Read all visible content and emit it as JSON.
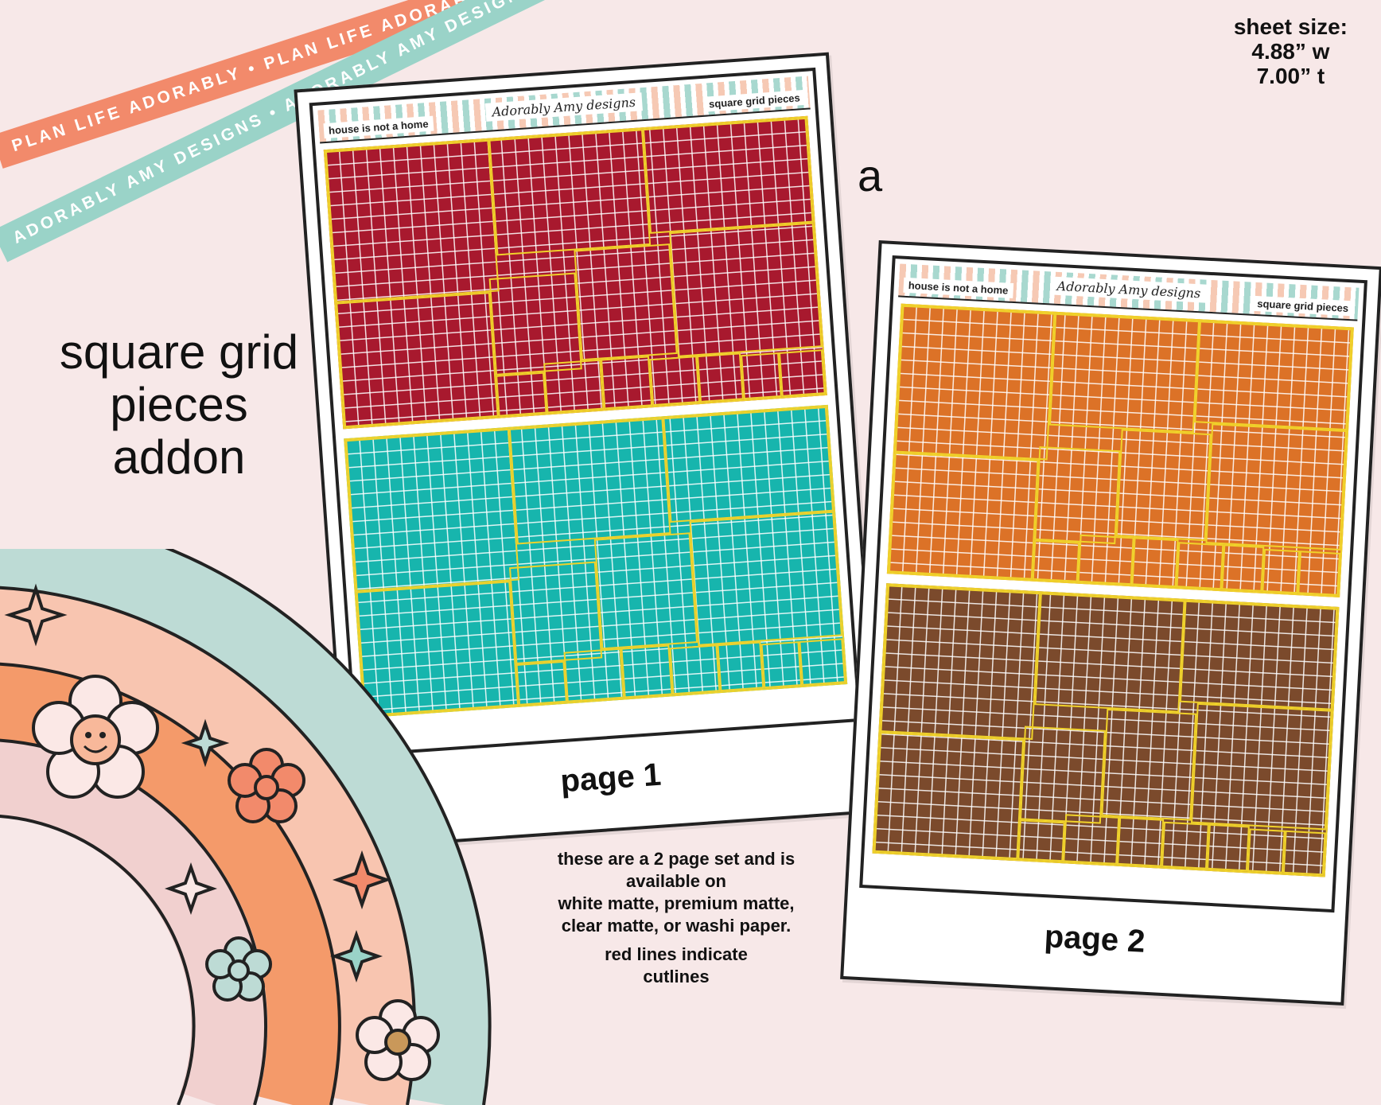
{
  "ribbons": {
    "top_text": "PLAN LIFE ADORABLY • PLAN LIFE ADORABLY • PLAN LIFE ADORABLY •",
    "bottom_text": "ADORABLY AMY DESIGNS • ADORABLY AMY DESIGNS • ADORABLY AMY DESIGNS •",
    "top_color": "#f28a6b",
    "bottom_color": "#9ad3c8"
  },
  "title": {
    "line1": "square grid",
    "line2": "pieces",
    "line3": "addon"
  },
  "sheet_size": {
    "label": "sheet size:",
    "width": "4.88” w",
    "height": "7.00” t"
  },
  "variant_letter": "a",
  "pages": [
    {
      "label": "page 1",
      "header_left": "house is not a home",
      "header_center": "Adorably Amy designs",
      "header_right": "square grid pieces",
      "colors": [
        "#a8192e",
        "#17b5ad"
      ]
    },
    {
      "label": "page 2",
      "header_left": "house is not a home",
      "header_center": "Adorably Amy designs",
      "header_right": "square grid pieces",
      "colors": [
        "#dc7227",
        "#7b4a2c"
      ]
    }
  ],
  "info": {
    "line1": "these are a 2 page set and is",
    "line2": "available on",
    "line3": "white matte, premium matte,",
    "line4": "clear matte, or washi paper.",
    "line5": "red lines indicate",
    "line6": "cutlines"
  },
  "cutline_color": "#f0d22a"
}
